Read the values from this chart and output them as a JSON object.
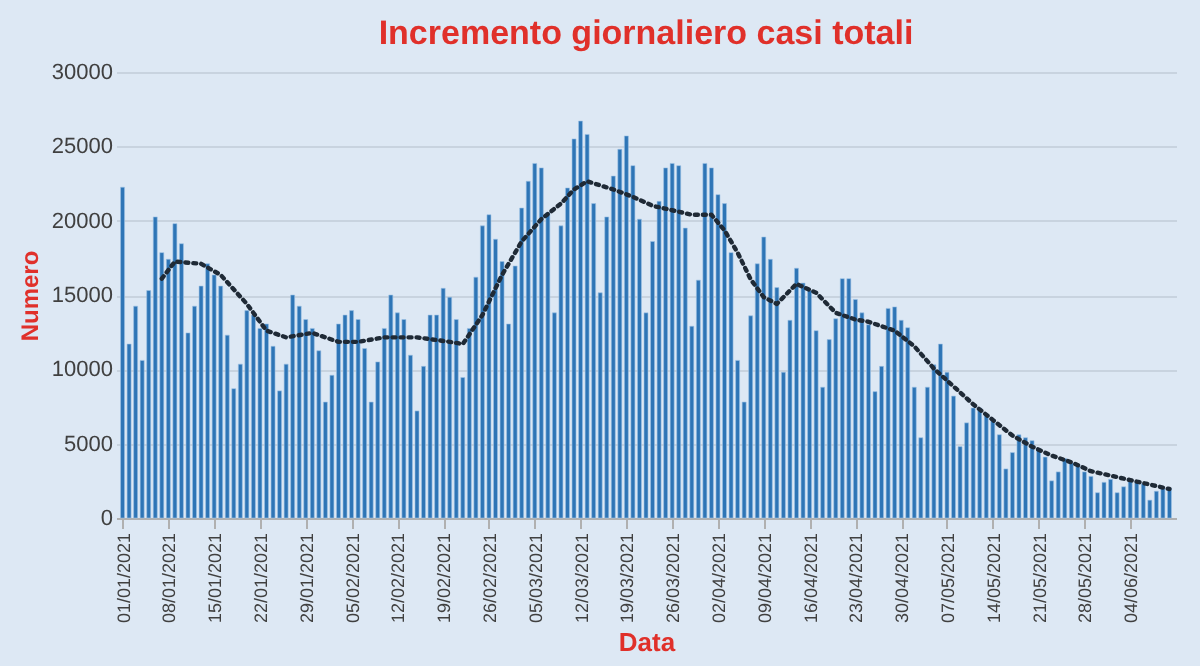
{
  "chart_data": {
    "type": "bar",
    "title": "Incremento giornaliero casi totali",
    "xlabel": "Data",
    "ylabel": "Numero",
    "x": [
      "2021-01-01",
      "2021-01-02",
      "2021-01-03",
      "2021-01-04",
      "2021-01-05",
      "2021-01-06",
      "2021-01-07",
      "2021-01-08",
      "2021-01-09",
      "2021-01-10",
      "2021-01-11",
      "2021-01-12",
      "2021-01-13",
      "2021-01-14",
      "2021-01-15",
      "2021-01-16",
      "2021-01-17",
      "2021-01-18",
      "2021-01-19",
      "2021-01-20",
      "2021-01-21",
      "2021-01-22",
      "2021-01-23",
      "2021-01-24",
      "2021-01-25",
      "2021-01-26",
      "2021-01-27",
      "2021-01-28",
      "2021-01-29",
      "2021-01-30",
      "2021-01-31",
      "2021-02-01",
      "2021-02-02",
      "2021-02-03",
      "2021-02-04",
      "2021-02-05",
      "2021-02-06",
      "2021-02-07",
      "2021-02-08",
      "2021-02-09",
      "2021-02-10",
      "2021-02-11",
      "2021-02-12",
      "2021-02-13",
      "2021-02-14",
      "2021-02-15",
      "2021-02-16",
      "2021-02-17",
      "2021-02-18",
      "2021-02-19",
      "2021-02-20",
      "2021-02-21",
      "2021-02-22",
      "2021-02-23",
      "2021-02-24",
      "2021-02-25",
      "2021-02-26",
      "2021-02-27",
      "2021-02-28",
      "2021-03-01",
      "2021-03-02",
      "2021-03-03",
      "2021-03-04",
      "2021-03-05",
      "2021-03-06",
      "2021-03-07",
      "2021-03-08",
      "2021-03-09",
      "2021-03-10",
      "2021-03-11",
      "2021-03-12",
      "2021-03-13",
      "2021-03-14",
      "2021-03-15",
      "2021-03-16",
      "2021-03-17",
      "2021-03-18",
      "2021-03-19",
      "2021-03-20",
      "2021-03-21",
      "2021-03-22",
      "2021-03-23",
      "2021-03-24",
      "2021-03-25",
      "2021-03-26",
      "2021-03-27",
      "2021-03-28",
      "2021-03-29",
      "2021-03-30",
      "2021-03-31",
      "2021-04-01",
      "2021-04-02",
      "2021-04-03",
      "2021-04-04",
      "2021-04-05",
      "2021-04-06",
      "2021-04-07",
      "2021-04-08",
      "2021-04-09",
      "2021-04-10",
      "2021-04-11",
      "2021-04-12",
      "2021-04-13",
      "2021-04-14",
      "2021-04-15",
      "2021-04-16",
      "2021-04-17",
      "2021-04-18",
      "2021-04-19",
      "2021-04-20",
      "2021-04-21",
      "2021-04-22",
      "2021-04-23",
      "2021-04-24",
      "2021-04-25",
      "2021-04-26",
      "2021-04-27",
      "2021-04-28",
      "2021-04-29",
      "2021-04-30",
      "2021-05-01",
      "2021-05-02",
      "2021-05-03",
      "2021-05-04",
      "2021-05-05",
      "2021-05-06",
      "2021-05-07",
      "2021-05-08",
      "2021-05-09",
      "2021-05-10",
      "2021-05-11",
      "2021-05-12",
      "2021-05-13",
      "2021-05-14",
      "2021-05-15",
      "2021-05-16",
      "2021-05-17",
      "2021-05-18",
      "2021-05-19",
      "2021-05-20",
      "2021-05-21",
      "2021-05-22",
      "2021-05-23",
      "2021-05-24",
      "2021-05-25",
      "2021-05-26",
      "2021-05-27",
      "2021-05-28",
      "2021-05-29",
      "2021-05-30",
      "2021-05-31",
      "2021-06-01",
      "2021-06-02",
      "2021-06-03",
      "2021-06-04",
      "2021-06-05",
      "2021-06-06",
      "2021-06-07",
      "2021-06-08",
      "2021-06-09",
      "2021-06-10"
    ],
    "series": [
      {
        "color": "#2e75b6",
        "values": [
          22250,
          11700,
          14250,
          10600,
          15300,
          20250,
          17850,
          17400,
          19800,
          18450,
          12450,
          14250,
          15600,
          17100,
          16350,
          15600,
          12300,
          8700,
          10350,
          13950,
          13650,
          12750,
          13050,
          11550,
          8550,
          10350,
          15000,
          14250,
          13350,
          12750,
          11250,
          7800,
          9600,
          13050,
          13650,
          13950,
          13350,
          11400,
          7800,
          10500,
          12750,
          15000,
          13800,
          13350,
          10950,
          7200,
          10200,
          13650,
          13650,
          15450,
          14850,
          13350,
          9450,
          12750,
          16200,
          19650,
          20400,
          18750,
          17250,
          13050,
          16950,
          20850,
          22650,
          23850,
          23550,
          20550,
          13800,
          19650,
          22200,
          25500,
          26700,
          25800,
          21150,
          15150,
          20250,
          23000,
          24800,
          25700,
          23700,
          20100,
          13800,
          18600,
          21300,
          23550,
          23850,
          23700,
          19500,
          12900,
          16000,
          23850,
          23550,
          21750,
          21150,
          17850,
          10600,
          7800,
          13600,
          17100,
          18900,
          17400,
          15500,
          9800,
          13300,
          16800,
          15800,
          15300,
          12600,
          8800,
          12000,
          13400,
          16100,
          16100,
          14700,
          13800,
          13000,
          8500,
          10200,
          14100,
          14200,
          13300,
          12800,
          8800,
          5400,
          8800,
          10300,
          11700,
          9800,
          8200,
          4800,
          6400,
          7400,
          7400,
          6900,
          6600,
          5600,
          3300,
          4400,
          5600,
          5400,
          5200,
          4700,
          4100,
          2500,
          3100,
          4000,
          3700,
          3600,
          3100,
          2800,
          1700,
          2400,
          2600,
          1700,
          2100,
          2500,
          2400,
          2300,
          1200,
          1800,
          2000,
          2000
        ]
      },
      {
        "type": "line",
        "color": "#1f2a36",
        "line_style": "dotted",
        "x": [
          "2021-01-07",
          "2021-01-09",
          "2021-01-13",
          "2021-01-16",
          "2021-01-20",
          "2021-01-23",
          "2021-01-26",
          "2021-01-30",
          "2021-02-03",
          "2021-02-06",
          "2021-02-10",
          "2021-02-15",
          "2021-02-20",
          "2021-02-22",
          "2021-02-25",
          "2021-02-28",
          "2021-03-03",
          "2021-03-06",
          "2021-03-09",
          "2021-03-11",
          "2021-03-13",
          "2021-03-17",
          "2021-03-20",
          "2021-03-23",
          "2021-03-26",
          "2021-03-29",
          "2021-04-01",
          "2021-04-03",
          "2021-04-05",
          "2021-04-07",
          "2021-04-09",
          "2021-04-11",
          "2021-04-14",
          "2021-04-17",
          "2021-04-20",
          "2021-04-23",
          "2021-04-25",
          "2021-04-29",
          "2021-05-02",
          "2021-05-05",
          "2021-05-08",
          "2021-05-11",
          "2021-05-14",
          "2021-05-17",
          "2021-05-20",
          "2021-05-23",
          "2021-05-26",
          "2021-05-29",
          "2021-06-01",
          "2021-06-04",
          "2021-06-07",
          "2021-06-10"
        ],
        "values": [
          16100,
          17250,
          17100,
          16350,
          14400,
          12600,
          12150,
          12450,
          11850,
          11850,
          12150,
          12150,
          11850,
          11700,
          13650,
          16350,
          18600,
          20100,
          21150,
          22100,
          22650,
          22100,
          21600,
          21000,
          20700,
          20400,
          20400,
          19350,
          17850,
          16050,
          14850,
          14400,
          15750,
          15150,
          13800,
          13350,
          13200,
          12600,
          11550,
          10050,
          8850,
          7650,
          6600,
          5550,
          4800,
          4200,
          3750,
          3150,
          2850,
          2550,
          2250,
          1950
        ]
      }
    ],
    "xlim": [
      "2020-12-31",
      "2021-06-11"
    ],
    "xticks": [
      {
        "value": "2021-01-01",
        "label": "01/01/2021"
      },
      {
        "value": "2021-01-08",
        "label": "08/01/2021"
      },
      {
        "value": "2021-01-15",
        "label": "15/01/2021"
      },
      {
        "value": "2021-01-22",
        "label": "22/01/2021"
      },
      {
        "value": "2021-01-29",
        "label": "29/01/2021"
      },
      {
        "value": "2021-02-05",
        "label": "05/02/2021"
      },
      {
        "value": "2021-02-12",
        "label": "12/02/2021"
      },
      {
        "value": "2021-02-19",
        "label": "19/02/2021"
      },
      {
        "value": "2021-02-26",
        "label": "26/02/2021"
      },
      {
        "value": "2021-03-05",
        "label": "05/03/2021"
      },
      {
        "value": "2021-03-12",
        "label": "12/03/2021"
      },
      {
        "value": "2021-03-19",
        "label": "19/03/2021"
      },
      {
        "value": "2021-03-26",
        "label": "26/03/2021"
      },
      {
        "value": "2021-04-02",
        "label": "02/04/2021"
      },
      {
        "value": "2021-04-09",
        "label": "09/04/2021"
      },
      {
        "value": "2021-04-16",
        "label": "16/04/2021"
      },
      {
        "value": "2021-04-23",
        "label": "23/04/2021"
      },
      {
        "value": "2021-04-30",
        "label": "30/04/2021"
      },
      {
        "value": "2021-05-07",
        "label": "07/05/2021"
      },
      {
        "value": "2021-05-14",
        "label": "14/05/2021"
      },
      {
        "value": "2021-05-21",
        "label": "21/05/2021"
      },
      {
        "value": "2021-05-28",
        "label": "28/05/2021"
      },
      {
        "value": "2021-06-04",
        "label": "04/06/2021"
      }
    ],
    "ylim": [
      0,
      30000
    ],
    "yticks": [
      0,
      5000,
      10000,
      15000,
      20000,
      25000,
      30000
    ],
    "grid": "y"
  }
}
